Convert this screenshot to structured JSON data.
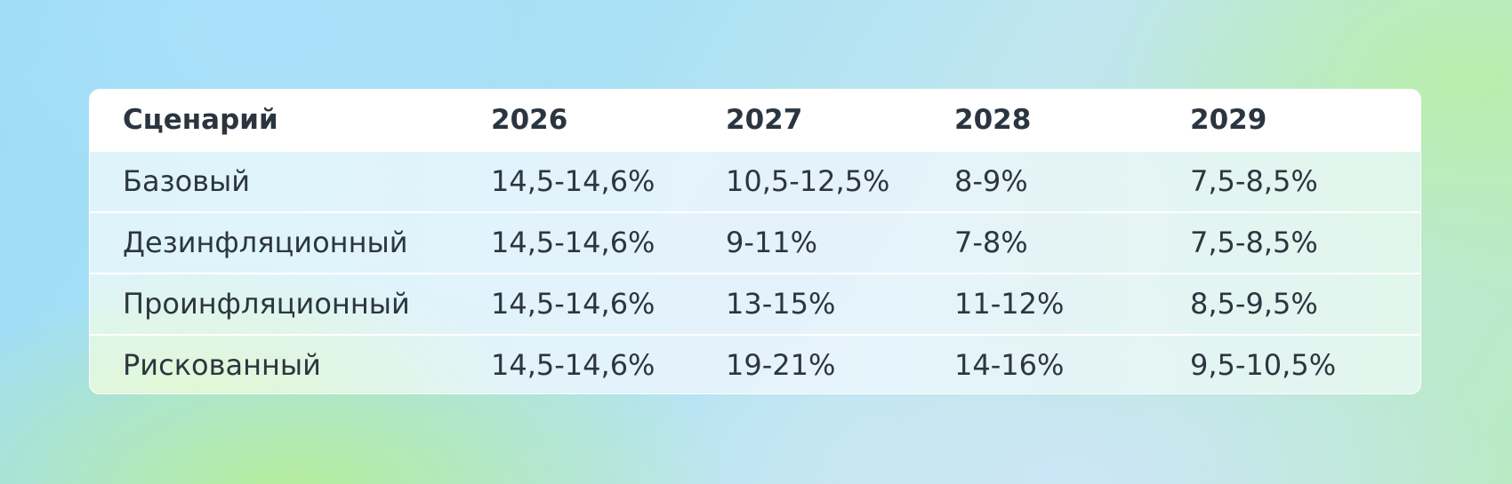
{
  "table": {
    "headers": [
      "Сценарий",
      "2026",
      "2027",
      "2028",
      "2029"
    ],
    "rows": [
      [
        "Базовый",
        "14,5-14,6%",
        "10,5-12,5%",
        "8-9%",
        "7,5-8,5%"
      ],
      [
        "Дезинфляционный",
        "14,5-14,6%",
        "9-11%",
        "7-8%",
        "7,5-8,5%"
      ],
      [
        "Проинфляционный",
        "14,5-14,6%",
        "13-15%",
        "11-12%",
        "8,5-9,5%"
      ],
      [
        "Рискованный",
        "14,5-14,6%",
        "19-21%",
        "14-16%",
        "9,5-10,5%"
      ]
    ]
  }
}
